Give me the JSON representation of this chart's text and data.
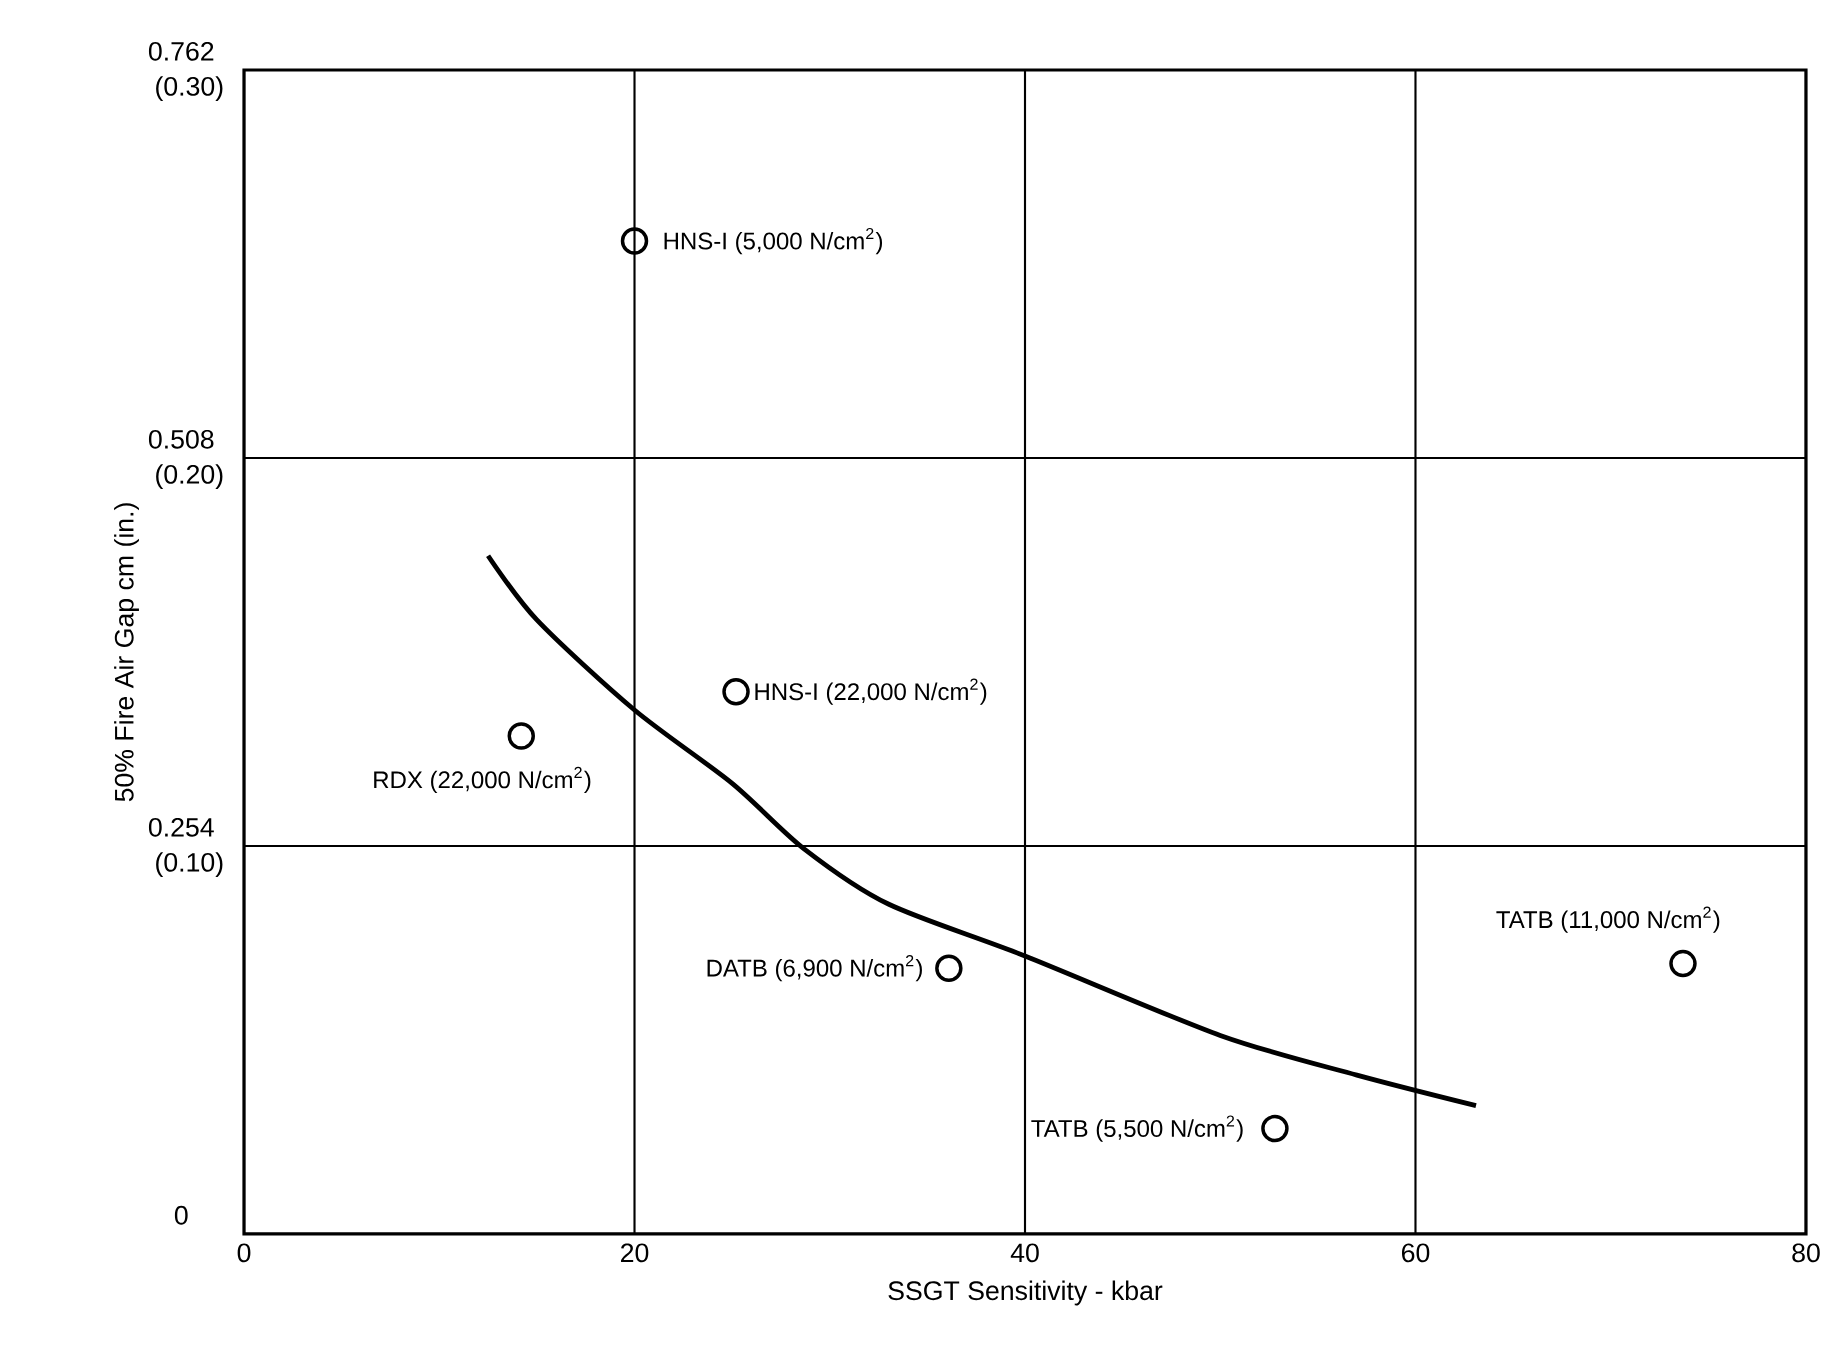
{
  "chart_data": {
    "type": "scatter",
    "xlabel": "SSGT Sensitivity - kbar",
    "ylabel": "50% Fire Air Gap cm (in.)",
    "xlim": [
      0,
      80
    ],
    "xticks": [
      0,
      20,
      40,
      60,
      80
    ],
    "ylim": [
      0,
      0.762
    ],
    "yticks": [
      0,
      0.254,
      0.508,
      0.762
    ],
    "y2lim": [
      0,
      0.3
    ],
    "y2ticks": [
      {
        "value": 0.1,
        "label": "(0.10)"
      },
      {
        "value": 0.2,
        "label": "(0.20)"
      },
      {
        "value": 0.3,
        "label": "(0.30)"
      }
    ],
    "grid": true,
    "marker": "circle",
    "series": [
      {
        "color": "#000000",
        "x": [
          20,
          25.2,
          14.2,
          36.1,
          52.8,
          73.7
        ],
        "values": [
          0.65,
          0.355,
          0.326,
          0.174,
          0.069,
          0.177
        ]
      },
      {
        "type": "line",
        "color": "#000000",
        "marker": "none",
        "x": [
          12.5,
          15,
          20,
          25,
          28.7,
          33,
          40,
          50,
          57,
          63.1
        ],
        "values": [
          0.444,
          0.402,
          0.343,
          0.295,
          0.252,
          0.216,
          0.182,
          0.13,
          0.104,
          0.084
        ]
      }
    ],
    "annotations": [
      {
        "text": "HNS-I (5,000 N/cm$^{2}$)",
        "x": 20,
        "y": 0.65
      },
      {
        "text": "HNS-I (22,000 N/cm$^{2}$)",
        "x": 25.2,
        "y": 0.355
      },
      {
        "text": "RDX (22,000 N/cm$^{2}$)",
        "x": 14.2,
        "y": 0.326
      },
      {
        "text": "DATB (6,900 N/cm$^{2}$)",
        "x": 36.1,
        "y": 0.174
      },
      {
        "text": "TATB (5,500 N/cm$^{2}$)",
        "x": 52.8,
        "y": 0.069
      },
      {
        "text": "TATB (11,000 N/cm$^{2}$)",
        "x": 73.7,
        "y": 0.177
      }
    ]
  }
}
